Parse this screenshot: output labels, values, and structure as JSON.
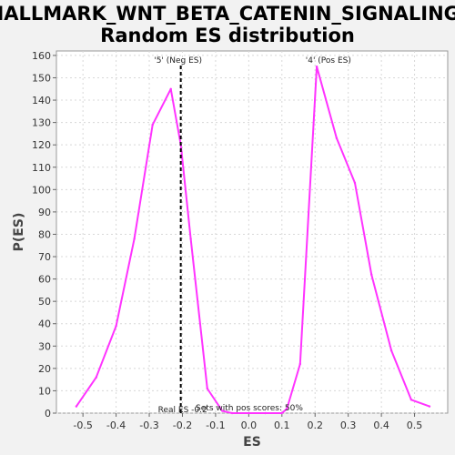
{
  "chart_data": {
    "type": "line",
    "title_line1": "HALLMARK_WNT_BETA_CATENIN_SIGNALING:",
    "title_line2": "Random ES distribution",
    "xlabel": "ES",
    "ylabel": "P(ES)",
    "xlim": [
      -0.58,
      0.6
    ],
    "ylim": [
      0,
      162
    ],
    "x_ticks": [
      -0.5,
      -0.4,
      -0.3,
      -0.2,
      -0.1,
      0.0,
      0.1,
      0.2,
      0.3,
      0.4,
      0.5
    ],
    "x_tick_labels": [
      "-0.5",
      "-0.4",
      "-0.3",
      "-0.2",
      "-0.1",
      "0.0",
      "0.1",
      "0.2",
      "0.3",
      "0.4",
      "0.5"
    ],
    "y_ticks": [
      0,
      10,
      20,
      30,
      40,
      50,
      60,
      70,
      80,
      90,
      100,
      110,
      120,
      130,
      140,
      150,
      160
    ],
    "grid": true,
    "series": [
      {
        "color": "#ff33ff",
        "points": [
          [
            -0.52,
            3
          ],
          [
            -0.46,
            16
          ],
          [
            -0.4,
            39
          ],
          [
            -0.345,
            78
          ],
          [
            -0.29,
            129
          ],
          [
            -0.235,
            145
          ],
          [
            -0.205,
            120
          ],
          [
            -0.175,
            78
          ],
          [
            -0.125,
            11
          ],
          [
            -0.08,
            1
          ],
          [
            -0.05,
            0
          ],
          [
            0.0,
            0
          ],
          [
            0.05,
            0
          ],
          [
            0.1,
            0
          ],
          [
            0.115,
            2
          ],
          [
            0.155,
            22
          ],
          [
            0.205,
            155
          ],
          [
            0.265,
            123
          ],
          [
            0.32,
            103
          ],
          [
            0.37,
            62
          ],
          [
            0.43,
            28
          ],
          [
            0.49,
            6
          ],
          [
            0.545,
            3
          ]
        ]
      }
    ],
    "real_es_x": -0.205,
    "annotations": {
      "neg_label": "'5' (Neg ES)",
      "neg_color": "#0000ff",
      "pos_label": "'4' (Pos ES)",
      "pos_color": "#ff0000",
      "real_es_label": "Real ES -0.2",
      "pos_scores_label": "Sets with pos scores: 50%"
    }
  }
}
